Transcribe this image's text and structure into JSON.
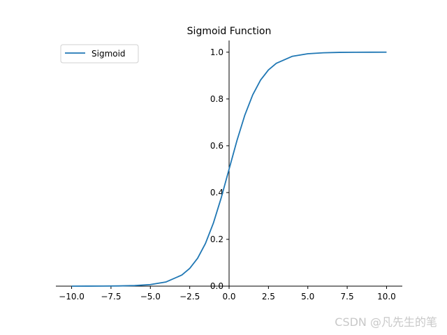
{
  "chart_data": {
    "type": "line",
    "title": "Sigmoid  Function",
    "xlabel": "",
    "ylabel": "",
    "xlim": [
      -11,
      11
    ],
    "ylim": [
      0,
      1.05
    ],
    "xticks": [
      -10.0,
      -7.5,
      -5.0,
      -2.5,
      0.0,
      2.5,
      5.0,
      7.5,
      10.0
    ],
    "xtick_labels": [
      "−10.0",
      "−7.5",
      "−5.0",
      "−2.5",
      "0.0",
      "2.5",
      "5.0",
      "7.5",
      "10.0"
    ],
    "yticks": [
      0.0,
      0.2,
      0.4,
      0.6,
      0.8,
      1.0
    ],
    "ytick_labels": [
      "0.0",
      "0.2",
      "0.4",
      "0.6",
      "0.8",
      "1.0"
    ],
    "grid": false,
    "legend_position": "top-left",
    "series": [
      {
        "name": "Sigmoid",
        "color": "#1f77b4",
        "x": [
          -10,
          -9,
          -8,
          -7,
          -6,
          -5,
          -4,
          -3,
          -2.5,
          -2,
          -1.5,
          -1,
          -0.5,
          0,
          0.5,
          1,
          1.5,
          2,
          2.5,
          3,
          4,
          5,
          6,
          7,
          8,
          9,
          10
        ],
        "y": [
          4.54e-05,
          0.0001234,
          0.0003354,
          0.000911,
          0.002473,
          0.006693,
          0.017986,
          0.047426,
          0.075858,
          0.119203,
          0.182426,
          0.268941,
          0.377541,
          0.5,
          0.622459,
          0.731059,
          0.817574,
          0.880797,
          0.924142,
          0.952574,
          0.982014,
          0.993307,
          0.997527,
          0.999089,
          0.999665,
          0.999877,
          0.999955
        ]
      }
    ]
  },
  "watermark": "CSDN @凡先生的笔"
}
